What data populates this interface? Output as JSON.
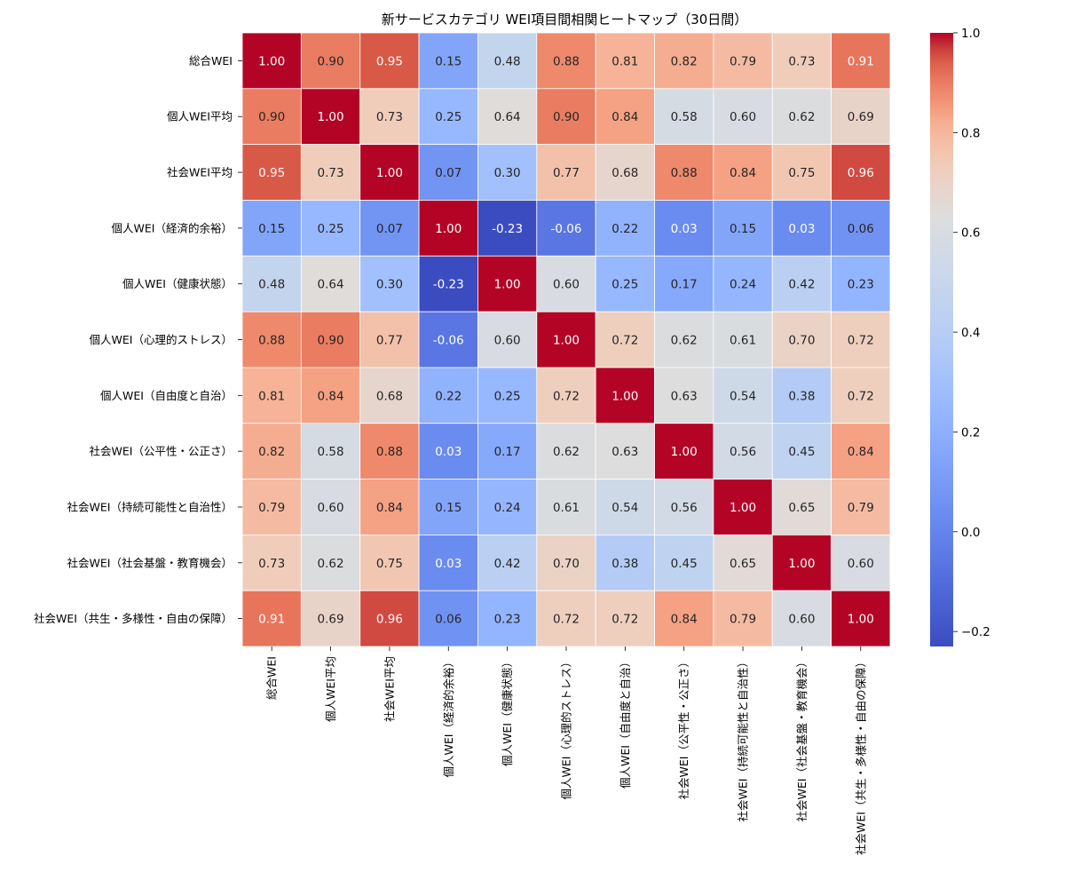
{
  "chart_data": {
    "type": "heatmap",
    "title": "新サービスカテゴリ WEI項目間相関ヒートマップ（30日間）",
    "labels": [
      "総合WEI",
      "個人WEI平均",
      "社会WEI平均",
      "個人WEI（経済的余裕）",
      "個人WEI（健康状態）",
      "個人WEI（心理的ストレス）",
      "個人WEI（自由度と自治）",
      "社会WEI（公平性・公正さ）",
      "社会WEI（持続可能性と自治性）",
      "社会WEI（社会基盤・教育機会）",
      "社会WEI（共生・多様性・自由の保障）"
    ],
    "values": [
      [
        1.0,
        0.9,
        0.95,
        0.15,
        0.48,
        0.88,
        0.81,
        0.82,
        0.79,
        0.73,
        0.91
      ],
      [
        0.9,
        1.0,
        0.73,
        0.25,
        0.64,
        0.9,
        0.84,
        0.58,
        0.6,
        0.62,
        0.69
      ],
      [
        0.95,
        0.73,
        1.0,
        0.07,
        0.3,
        0.77,
        0.68,
        0.88,
        0.84,
        0.75,
        0.96
      ],
      [
        0.15,
        0.25,
        0.07,
        1.0,
        -0.23,
        -0.06,
        0.22,
        0.03,
        0.15,
        0.03,
        0.06
      ],
      [
        0.48,
        0.64,
        0.3,
        -0.23,
        1.0,
        0.6,
        0.25,
        0.17,
        0.24,
        0.42,
        0.23
      ],
      [
        0.88,
        0.9,
        0.77,
        -0.06,
        0.6,
        1.0,
        0.72,
        0.62,
        0.61,
        0.7,
        0.72
      ],
      [
        0.81,
        0.84,
        0.68,
        0.22,
        0.25,
        0.72,
        1.0,
        0.63,
        0.54,
        0.38,
        0.72
      ],
      [
        0.82,
        0.58,
        0.88,
        0.03,
        0.17,
        0.62,
        0.63,
        1.0,
        0.56,
        0.45,
        0.84
      ],
      [
        0.79,
        0.6,
        0.84,
        0.15,
        0.24,
        0.61,
        0.54,
        0.56,
        1.0,
        0.65,
        0.79
      ],
      [
        0.73,
        0.62,
        0.75,
        0.03,
        0.42,
        0.7,
        0.38,
        0.45,
        0.65,
        1.0,
        0.6
      ],
      [
        0.91,
        0.69,
        0.96,
        0.06,
        0.23,
        0.72,
        0.72,
        0.84,
        0.79,
        0.6,
        1.0
      ]
    ],
    "value_range": [
      -0.23,
      1.0
    ],
    "colormap": "coolwarm",
    "colorbar_ticks": [
      1.0,
      0.8,
      0.6,
      0.4,
      0.2,
      0.0,
      -0.2
    ],
    "colorbar_tick_labels": [
      "1.0",
      "0.8",
      "0.6",
      "0.4",
      "0.2",
      "0.0",
      "−0.2"
    ],
    "annotations": true,
    "annotation_format": "0.00",
    "colors": {
      "low": "#3b4cc0",
      "mid": "#dddddd",
      "high": "#b40426",
      "cell_border": "#ffffff"
    }
  }
}
